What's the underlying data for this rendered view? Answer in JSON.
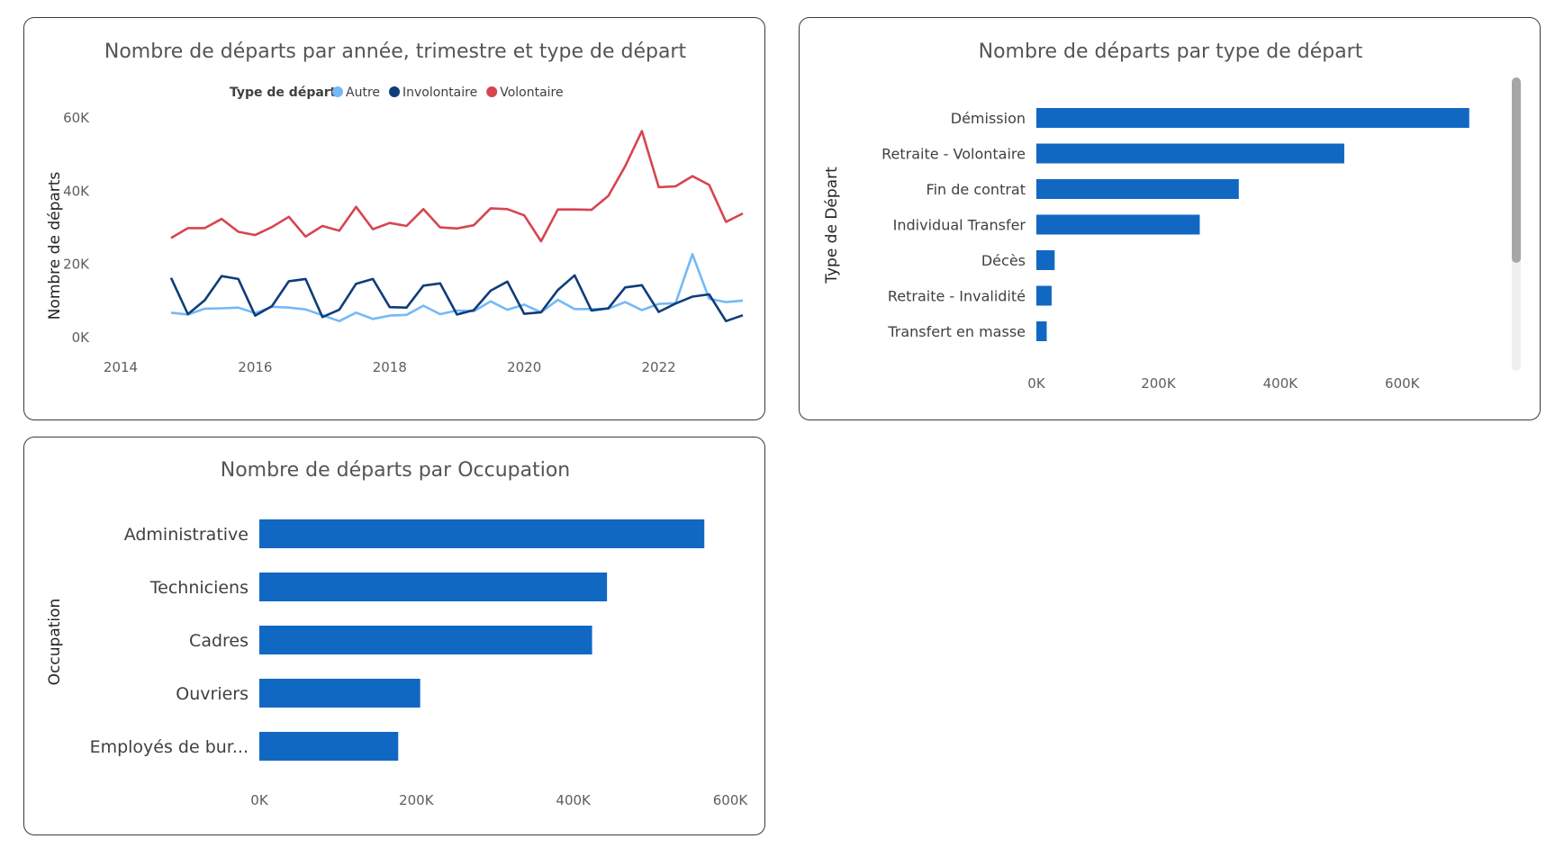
{
  "chart_data": [
    {
      "type": "line",
      "title": "Nombre de départs par année, trimestre et type de départ",
      "xlabel": "",
      "ylabel": "Nombre de départs",
      "legend_title": "Type de départ",
      "legend_position": "top",
      "x_ticks": [
        "2014",
        "2016",
        "2018",
        "2020",
        "2022"
      ],
      "y_ticks": [
        "0K",
        "20K",
        "40K",
        "60K"
      ],
      "ylim": [
        0,
        60000
      ],
      "xlim": [
        2014.0,
        2023.25
      ],
      "x": [
        2014.75,
        2015.0,
        2015.25,
        2015.5,
        2015.75,
        2016.0,
        2016.25,
        2016.5,
        2016.75,
        2017.0,
        2017.25,
        2017.5,
        2017.75,
        2018.0,
        2018.25,
        2018.5,
        2018.75,
        2019.0,
        2019.25,
        2019.5,
        2019.75,
        2020.0,
        2020.25,
        2020.5,
        2020.75,
        2021.0,
        2021.25,
        2021.5,
        2021.75,
        2022.0,
        2022.25,
        2022.5,
        2022.75,
        2023.0,
        2023.25
      ],
      "series": [
        {
          "name": "Autre",
          "color": "#74b9f7",
          "values": [
            6800,
            6300,
            7900,
            8000,
            8200,
            6700,
            8400,
            8200,
            7700,
            6100,
            4500,
            6800,
            5100,
            6000,
            6200,
            8700,
            6400,
            7400,
            7200,
            9900,
            7600,
            9000,
            6900,
            10300,
            7800,
            7800,
            7900,
            9700,
            7500,
            9200,
            9400,
            22800,
            10600,
            9700,
            10100
          ]
        },
        {
          "name": "Involontaire",
          "color": "#0e3d7a",
          "values": [
            16300,
            6400,
            10200,
            16800,
            16000,
            6000,
            8600,
            15400,
            16000,
            5600,
            7600,
            14700,
            16000,
            8300,
            8200,
            14200,
            14800,
            6300,
            7500,
            12800,
            15300,
            6500,
            6900,
            13000,
            17000,
            7400,
            8000,
            13700,
            14300,
            7000,
            9300,
            11200,
            11800,
            4500,
            6100
          ]
        },
        {
          "name": "Volontaire",
          "color": "#d64550",
          "values": [
            27200,
            29900,
            29900,
            32400,
            28900,
            28000,
            30200,
            33000,
            27600,
            30500,
            29200,
            35700,
            29600,
            31300,
            30500,
            35100,
            30100,
            29800,
            30700,
            35300,
            35100,
            33400,
            26300,
            35000,
            35000,
            34900,
            38700,
            46800,
            56400,
            41100,
            41300,
            44100,
            41700,
            31600,
            33900
          ]
        }
      ]
    },
    {
      "type": "bar",
      "orientation": "horizontal",
      "title": "Nombre de départs par type de départ",
      "xlabel": "",
      "ylabel": "Type de Départ",
      "categories": [
        "Démission",
        "Retraite - Volontaire",
        "Fin de contrat",
        "Individual Transfer",
        "Décès",
        "Retraite - Invalidité",
        "Transfert en masse"
      ],
      "values": [
        710000,
        505000,
        332000,
        268000,
        30000,
        25000,
        17000
      ],
      "x_ticks": [
        "0K",
        "200K",
        "400K",
        "600K"
      ],
      "xlim": [
        0,
        700000
      ],
      "color": "#1168c2"
    },
    {
      "type": "bar",
      "orientation": "horizontal",
      "title": "Nombre de départs par Occupation",
      "xlabel": "",
      "ylabel": "Occupation",
      "categories": [
        "Administrative",
        "Techniciens",
        "Cadres",
        "Ouvriers",
        "Employés de bur..."
      ],
      "values": [
        567000,
        443000,
        424000,
        205000,
        177000
      ],
      "x_ticks": [
        "0K",
        "200K",
        "400K",
        "600K"
      ],
      "xlim": [
        0,
        600000
      ],
      "color": "#1168c2"
    }
  ]
}
